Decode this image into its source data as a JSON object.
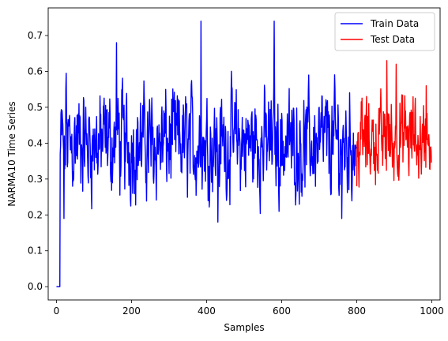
{
  "chart_data": {
    "type": "line",
    "title": "",
    "xlabel": "Samples",
    "ylabel": "NARMA10 Time Series",
    "xlim": [
      -22,
      1022
    ],
    "ylim": [
      -0.037,
      0.777
    ],
    "xticks": [
      0,
      200,
      400,
      600,
      800,
      1000
    ],
    "yticks": [
      0.0,
      0.1,
      0.2,
      0.3,
      0.4,
      0.5,
      0.6,
      0.7
    ],
    "xtick_labels": [
      "0",
      "200",
      "400",
      "600",
      "800",
      "1000"
    ],
    "ytick_labels": [
      "0.0",
      "0.1",
      "0.2",
      "0.3",
      "0.4",
      "0.5",
      "0.6",
      "0.7"
    ],
    "grid": false,
    "legend_position": "top-right",
    "series": [
      {
        "name": "Train Data",
        "color": "#0000ff",
        "start": 0,
        "count": 800,
        "base": 0.4,
        "spread": 0.18,
        "warmup_until": 10,
        "warmup_value": 0.0,
        "anchors": [
          [
            10,
            0.37
          ],
          [
            20,
            0.19
          ],
          [
            25,
            0.55
          ],
          [
            160,
            0.68
          ],
          [
            385,
            0.74
          ],
          [
            580,
            0.74
          ],
          [
            430,
            0.18
          ],
          [
            760,
            0.19
          ]
        ]
      },
      {
        "name": "Test Data",
        "color": "#ff0000",
        "start": 800,
        "count": 200,
        "base": 0.41,
        "spread": 0.13,
        "warmup_until": 0,
        "warmup_value": 0.0,
        "anchors": [
          [
            800,
            0.28
          ],
          [
            880,
            0.63
          ],
          [
            905,
            0.62
          ],
          [
            985,
            0.56
          ],
          [
            998,
            0.38
          ]
        ]
      }
    ]
  }
}
